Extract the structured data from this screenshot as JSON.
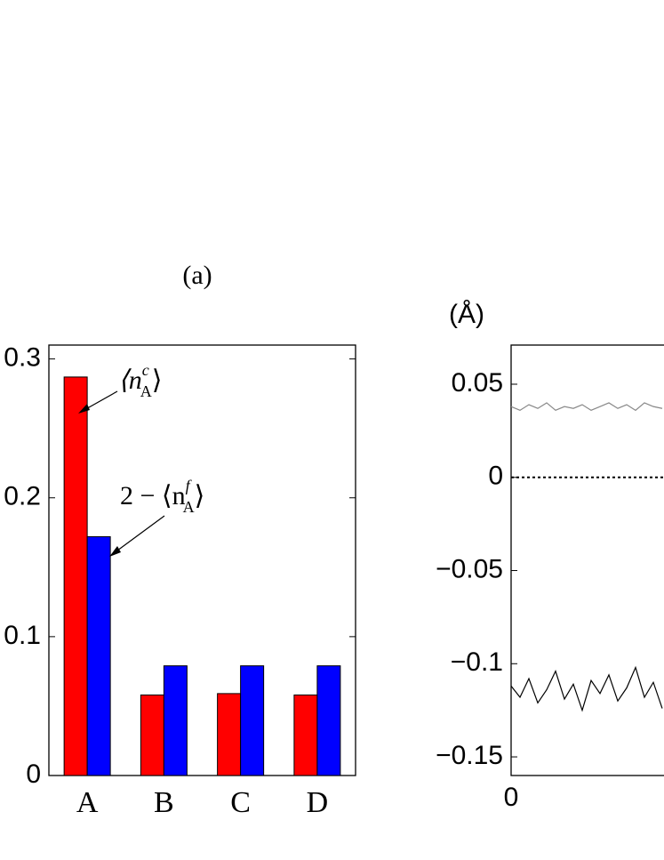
{
  "chart_data": [
    {
      "type": "bar",
      "title": "(a)",
      "categories": [
        "A",
        "B",
        "C",
        "D"
      ],
      "series": [
        {
          "name": "⟨n_A^c⟩",
          "color": "#ff0000",
          "values": [
            0.287,
            0.058,
            0.059,
            0.058
          ]
        },
        {
          "name": "2 − ⟨n_A^f⟩",
          "color": "#0000ff",
          "values": [
            0.172,
            0.079,
            0.079,
            0.079
          ]
        }
      ],
      "ylim": [
        0,
        0.31
      ],
      "yticks": [
        0,
        0.1,
        0.2,
        0.3
      ],
      "annotations": [
        "⟨n",
        "c",
        "A",
        "⟩",
        "2 − ⟨n",
        "f",
        "A",
        "⟩"
      ]
    },
    {
      "type": "line",
      "ylabel": "(Å)",
      "x": [
        0,
        4,
        8,
        12,
        16,
        20,
        24,
        28,
        32,
        36,
        40,
        44,
        48,
        52,
        56,
        60,
        64,
        68
      ],
      "series": [
        {
          "color": "#888888",
          "values": [
            0.038,
            0.036,
            0.039,
            0.037,
            0.04,
            0.036,
            0.038,
            0.037,
            0.039,
            0.036,
            0.038,
            0.04,
            0.037,
            0.039,
            0.036,
            0.04,
            0.038,
            0.037
          ]
        },
        {
          "color": "#000000",
          "values": [
            -0.112,
            -0.118,
            -0.108,
            -0.121,
            -0.114,
            -0.104,
            -0.119,
            -0.111,
            -0.125,
            -0.109,
            -0.116,
            -0.106,
            -0.12,
            -0.113,
            -0.102,
            -0.118,
            -0.11,
            -0.124
          ]
        }
      ],
      "hline": 0,
      "xlim": [
        0,
        200
      ],
      "xticks": [
        0
      ],
      "ylim": [
        -0.16,
        0.071
      ],
      "yticks": [
        {
          "value": -0.15,
          "label": "−0.15"
        },
        {
          "value": -0.1,
          "label": "−0.1"
        },
        {
          "value": -0.05,
          "label": "−0.05"
        },
        0,
        0.05
      ]
    }
  ]
}
